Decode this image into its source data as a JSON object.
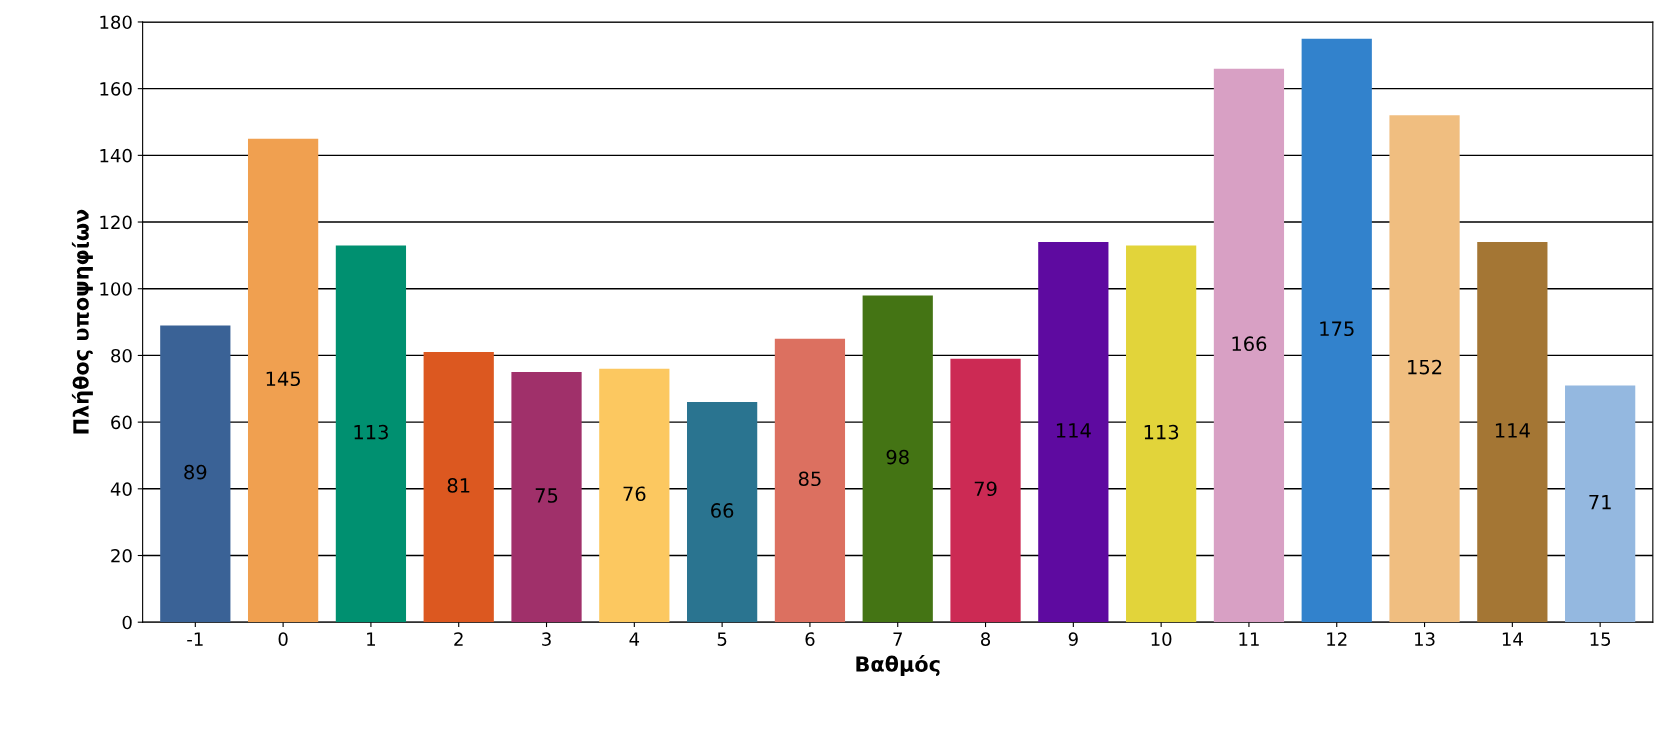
{
  "chart_data": {
    "type": "bar",
    "xlabel": "Βαθμός",
    "ylabel": "Πλήθος υποψηφίων",
    "categories": [
      "-1",
      "0",
      "1",
      "2",
      "3",
      "4",
      "5",
      "6",
      "7",
      "8",
      "9",
      "10",
      "11",
      "12",
      "13",
      "14",
      "15"
    ],
    "values": [
      89,
      145,
      113,
      81,
      75,
      76,
      66,
      85,
      98,
      79,
      114,
      113,
      166,
      175,
      152,
      114,
      71
    ],
    "colors": [
      "#3a6296",
      "#f0a050",
      "#009070",
      "#dc5820",
      "#a0306a",
      "#fcc860",
      "#2a7490",
      "#dc7060",
      "#447414",
      "#cc2a54",
      "#5e0aa0",
      "#e2d43a",
      "#d8a0c4",
      "#3282cc",
      "#f0be80",
      "#a47634",
      "#94b8e0"
    ],
    "ylim": [
      0,
      180
    ],
    "yticks": [
      0,
      20,
      40,
      60,
      80,
      100,
      120,
      140,
      160,
      180
    ],
    "grid": "y",
    "data_labels": true
  }
}
